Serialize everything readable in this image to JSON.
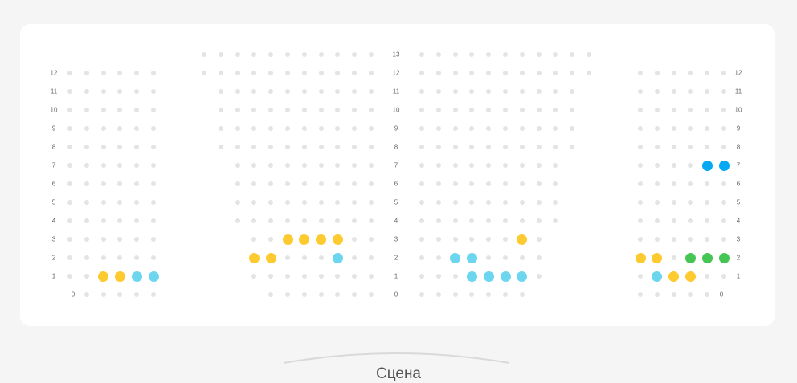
{
  "stage_label": "Сцена",
  "status_colors": {
    "free": "#e4e4e4",
    "yellow": "#fdca2f",
    "cyan": "#6dd6ef",
    "blue": "#05a8f2",
    "green": "#45c553"
  },
  "row_labels_center": [
    "13",
    "12",
    "11",
    "10",
    "9",
    "8",
    "7",
    "6",
    "5",
    "4",
    "3",
    "2",
    "1",
    "0"
  ],
  "row_labels_side": [
    "12",
    "11",
    "10",
    "9",
    "8",
    "7",
    "6",
    "5",
    "4",
    "3",
    "2",
    "1"
  ],
  "zero_label_left": "0",
  "zero_label_right": "0",
  "sections": [
    {
      "name": "left",
      "rows": [
        {
          "row": 12,
          "from": 0,
          "to": 5
        },
        {
          "row": 11,
          "from": 0,
          "to": 5
        },
        {
          "row": 10,
          "from": 0,
          "to": 5
        },
        {
          "row": 9,
          "from": 0,
          "to": 5
        },
        {
          "row": 8,
          "from": 0,
          "to": 5
        },
        {
          "row": 7,
          "from": 0,
          "to": 5
        },
        {
          "row": 6,
          "from": 0,
          "to": 5
        },
        {
          "row": 5,
          "from": 0,
          "to": 5
        },
        {
          "row": 4,
          "from": 0,
          "to": 5
        },
        {
          "row": 3,
          "from": 0,
          "to": 5
        },
        {
          "row": 2,
          "from": 0,
          "to": 5
        },
        {
          "row": 1,
          "from": 0,
          "to": 5,
          "taken": {
            "2": "yellow",
            "3": "yellow",
            "4": "cyan",
            "5": "cyan"
          }
        },
        {
          "row": 0,
          "from": 1,
          "to": 5
        }
      ]
    },
    {
      "name": "center-left",
      "rows": [
        {
          "row": 13,
          "from": 0,
          "to": 10
        },
        {
          "row": 12,
          "from": 0,
          "to": 10
        },
        {
          "row": 11,
          "from": 1,
          "to": 10
        },
        {
          "row": 10,
          "from": 1,
          "to": 10
        },
        {
          "row": 9,
          "from": 1,
          "to": 10
        },
        {
          "row": 8,
          "from": 1,
          "to": 10
        },
        {
          "row": 7,
          "from": 2,
          "to": 10
        },
        {
          "row": 6,
          "from": 2,
          "to": 10
        },
        {
          "row": 5,
          "from": 2,
          "to": 10
        },
        {
          "row": 4,
          "from": 2,
          "to": 10
        },
        {
          "row": 3,
          "from": 3,
          "to": 10,
          "taken": {
            "5": "yellow",
            "6": "yellow",
            "7": "yellow",
            "8": "yellow"
          }
        },
        {
          "row": 2,
          "from": 3,
          "to": 10,
          "taken": {
            "3": "yellow",
            "4": "yellow",
            "8": "cyan"
          }
        },
        {
          "row": 1,
          "from": 3,
          "to": 10
        },
        {
          "row": 0,
          "from": 4,
          "to": 10
        }
      ]
    },
    {
      "name": "center-right",
      "rows": [
        {
          "row": 13,
          "from": 0,
          "to": 10
        },
        {
          "row": 12,
          "from": 0,
          "to": 10
        },
        {
          "row": 11,
          "from": 0,
          "to": 9
        },
        {
          "row": 10,
          "from": 0,
          "to": 9
        },
        {
          "row": 9,
          "from": 0,
          "to": 9
        },
        {
          "row": 8,
          "from": 0,
          "to": 9
        },
        {
          "row": 7,
          "from": 0,
          "to": 8
        },
        {
          "row": 6,
          "from": 0,
          "to": 8
        },
        {
          "row": 5,
          "from": 0,
          "to": 8
        },
        {
          "row": 4,
          "from": 0,
          "to": 8
        },
        {
          "row": 3,
          "from": 0,
          "to": 7,
          "taken": {
            "6": "yellow"
          }
        },
        {
          "row": 2,
          "from": 0,
          "to": 7,
          "taken": {
            "2": "cyan",
            "3": "cyan"
          }
        },
        {
          "row": 1,
          "from": 0,
          "to": 7,
          "taken": {
            "3": "cyan",
            "4": "cyan",
            "5": "cyan",
            "6": "cyan"
          }
        },
        {
          "row": 0,
          "from": 0,
          "to": 6
        }
      ]
    },
    {
      "name": "right",
      "rows": [
        {
          "row": 12,
          "from": 0,
          "to": 5
        },
        {
          "row": 11,
          "from": 0,
          "to": 5
        },
        {
          "row": 10,
          "from": 0,
          "to": 5
        },
        {
          "row": 9,
          "from": 0,
          "to": 5
        },
        {
          "row": 8,
          "from": 0,
          "to": 5
        },
        {
          "row": 7,
          "from": 0,
          "to": 5,
          "taken": {
            "4": "blue",
            "5": "blue"
          }
        },
        {
          "row": 6,
          "from": 0,
          "to": 5
        },
        {
          "row": 5,
          "from": 0,
          "to": 5
        },
        {
          "row": 4,
          "from": 0,
          "to": 5
        },
        {
          "row": 3,
          "from": 0,
          "to": 5
        },
        {
          "row": 2,
          "from": 0,
          "to": 5,
          "taken": {
            "0": "yellow",
            "1": "yellow",
            "3": "green",
            "4": "green",
            "5": "green"
          }
        },
        {
          "row": 1,
          "from": 0,
          "to": 5,
          "taken": {
            "1": "cyan",
            "2": "yellow",
            "3": "yellow"
          }
        },
        {
          "row": 0,
          "from": 0,
          "to": 4
        }
      ]
    }
  ]
}
